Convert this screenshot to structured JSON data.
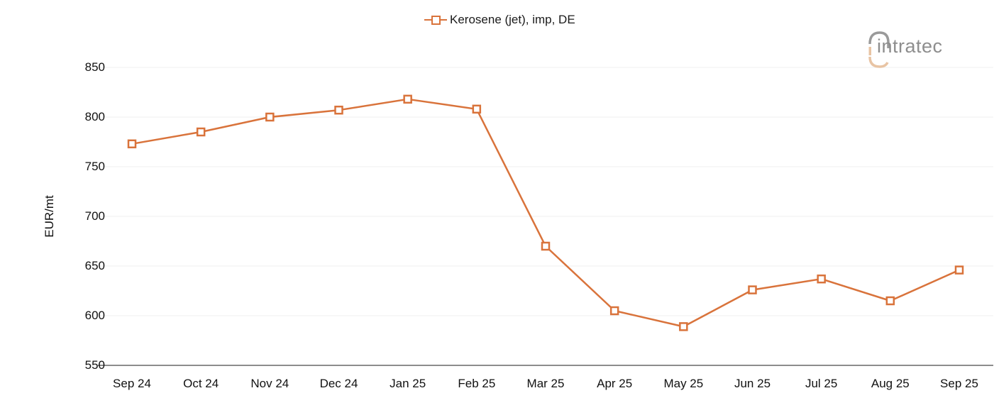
{
  "legend": {
    "label": "Kerosene (jet), imp, DE",
    "marker": "hollow-square-line"
  },
  "logo": {
    "text": "intratec"
  },
  "colors": {
    "series": "#D9733B",
    "grid": "#efefef",
    "axis": "#666666",
    "logo_gray": "#8e8e8e",
    "logo_accent": "#E8C4A4"
  },
  "chart_data": {
    "type": "line",
    "title": "",
    "xlabel": "",
    "ylabel": "EUR/mt",
    "categories": [
      "Sep 24",
      "Oct 24",
      "Nov 24",
      "Dec 24",
      "Jan 25",
      "Feb 25",
      "Mar 25",
      "Apr 25",
      "May 25",
      "Jun 25",
      "Jul 25",
      "Aug 25",
      "Sep 25"
    ],
    "series": [
      {
        "name": "Kerosene (jet), imp, DE",
        "values": [
          773,
          785,
          800,
          807,
          818,
          808,
          670,
          605,
          589,
          626,
          637,
          615,
          646
        ],
        "marker": "square-open"
      }
    ],
    "ylim": [
      550,
      850
    ],
    "yticks": [
      550,
      600,
      650,
      700,
      750,
      800,
      850
    ],
    "grid": true,
    "legend_position": "top-center"
  }
}
